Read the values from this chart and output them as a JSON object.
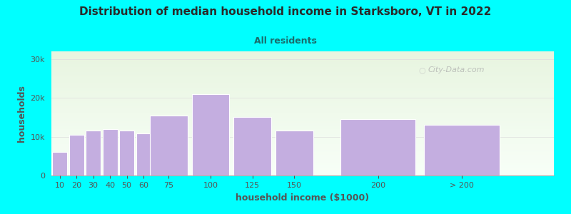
{
  "title": "Distribution of median household income in Starksboro, VT in 2022",
  "subtitle": "All residents",
  "xlabel": "household income ($1000)",
  "ylabel": "households",
  "background_color": "#00FFFF",
  "plot_bg_top": "#e8f5e0",
  "plot_bg_bottom": "#f8fff8",
  "bar_color": "#c4aee0",
  "bar_edge_color": "#ffffff",
  "title_color": "#2a2a2a",
  "subtitle_color": "#1a6b6b",
  "axis_label_color": "#555555",
  "tick_color": "#555555",
  "categories": [
    "10",
    "20",
    "30",
    "40",
    "50",
    "60",
    "75",
    "100",
    "125",
    "150",
    "200",
    "> 200"
  ],
  "values": [
    6000,
    10500,
    11500,
    12000,
    11500,
    10800,
    15500,
    21000,
    15000,
    11500,
    14500,
    13000
  ],
  "bar_positions": [
    10,
    20,
    30,
    40,
    50,
    60,
    75,
    100,
    125,
    150,
    200,
    250
  ],
  "bar_widths": [
    10,
    10,
    10,
    10,
    10,
    10,
    25,
    25,
    25,
    25,
    50,
    50
  ],
  "yticks": [
    0,
    10000,
    20000,
    30000
  ],
  "ytick_labels": [
    "0",
    "10k",
    "20k",
    "30k"
  ],
  "ylim": [
    0,
    32000
  ],
  "xlim": [
    5,
    305
  ],
  "xticks": [
    10,
    20,
    30,
    40,
    50,
    60,
    75,
    100,
    125,
    150,
    200,
    250
  ],
  "xtick_labels": [
    "10",
    "20",
    "30",
    "40",
    "50",
    "60",
    "75",
    "100",
    "125",
    "150",
    "200",
    "> 200"
  ],
  "watermark": "City-Data.com"
}
